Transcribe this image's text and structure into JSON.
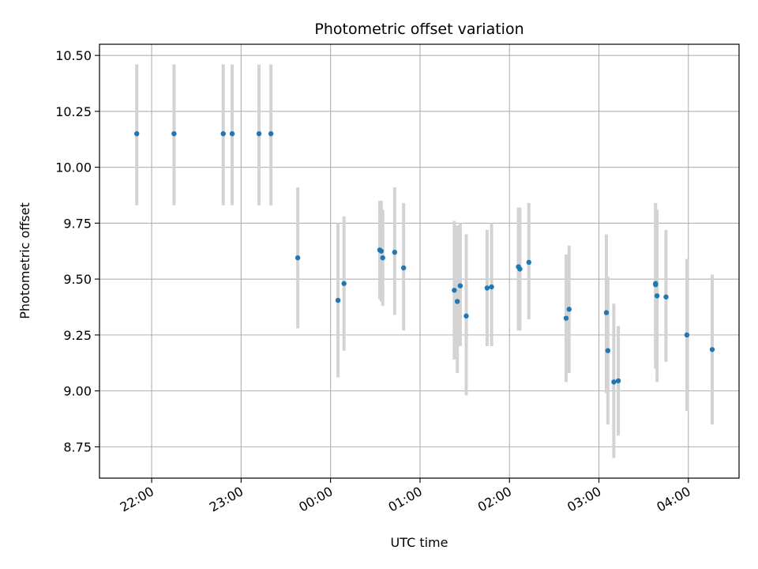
{
  "chart_data": {
    "type": "scatter",
    "title": "Photometric offset variation",
    "xlabel": "UTC time",
    "ylabel": "Photometric offset",
    "x_unit": "UTC time (hh:mm, minutes relative to 00:00; negative = previous day)",
    "xlim": [
      "21:25",
      "04:34"
    ],
    "ylim": [
      8.61,
      10.55
    ],
    "x_ticks": [
      "22:00",
      "23:00",
      "00:00",
      "01:00",
      "02:00",
      "03:00",
      "04:00"
    ],
    "y_ticks": [
      "8.75",
      "9.00",
      "9.25",
      "9.50",
      "9.75",
      "10.00",
      "10.25",
      "10.50"
    ],
    "grid": true,
    "colors": {
      "point": "#1f77b4",
      "errorbar": "#d3d3d3",
      "grid": "#b0b0b0"
    },
    "series": [
      {
        "points": [
          {
            "x": "21:50",
            "y": 10.15,
            "ylow": 9.83,
            "yhigh": 10.46
          },
          {
            "x": "22:15",
            "y": 10.15,
            "ylow": 9.83,
            "yhigh": 10.46
          },
          {
            "x": "22:48",
            "y": 10.15,
            "ylow": 9.83,
            "yhigh": 10.46
          },
          {
            "x": "22:54",
            "y": 10.15,
            "ylow": 9.83,
            "yhigh": 10.46
          },
          {
            "x": "23:12",
            "y": 10.15,
            "ylow": 9.83,
            "yhigh": 10.46
          },
          {
            "x": "23:20",
            "y": 10.15,
            "ylow": 9.83,
            "yhigh": 10.46
          },
          {
            "x": "23:38",
            "y": 9.595,
            "ylow": 9.28,
            "yhigh": 9.91
          },
          {
            "x": "00:05",
            "y": 9.405,
            "ylow": 9.06,
            "yhigh": 9.75
          },
          {
            "x": "00:09",
            "y": 9.48,
            "ylow": 9.18,
            "yhigh": 9.78
          },
          {
            "x": "00:33",
            "y": 9.63,
            "ylow": 9.41,
            "yhigh": 9.85
          },
          {
            "x": "00:34",
            "y": 9.625,
            "ylow": 9.4,
            "yhigh": 9.85
          },
          {
            "x": "00:35",
            "y": 9.595,
            "ylow": 9.38,
            "yhigh": 9.81
          },
          {
            "x": "00:43",
            "y": 9.62,
            "ylow": 9.34,
            "yhigh": 9.91
          },
          {
            "x": "00:49",
            "y": 9.55,
            "ylow": 9.27,
            "yhigh": 9.84
          },
          {
            "x": "01:23",
            "y": 9.45,
            "ylow": 9.14,
            "yhigh": 9.76
          },
          {
            "x": "01:25",
            "y": 9.4,
            "ylow": 9.08,
            "yhigh": 9.74
          },
          {
            "x": "01:27",
            "y": 9.47,
            "ylow": 9.2,
            "yhigh": 9.75
          },
          {
            "x": "01:31",
            "y": 9.335,
            "ylow": 8.98,
            "yhigh": 9.7
          },
          {
            "x": "01:45",
            "y": 9.46,
            "ylow": 9.2,
            "yhigh": 9.72
          },
          {
            "x": "01:48",
            "y": 9.465,
            "ylow": 9.2,
            "yhigh": 9.75
          },
          {
            "x": "02:06",
            "y": 9.555,
            "ylow": 9.27,
            "yhigh": 9.82
          },
          {
            "x": "02:07",
            "y": 9.545,
            "ylow": 9.27,
            "yhigh": 9.82
          },
          {
            "x": "02:13",
            "y": 9.575,
            "ylow": 9.32,
            "yhigh": 9.84
          },
          {
            "x": "02:38",
            "y": 9.325,
            "ylow": 9.04,
            "yhigh": 9.61
          },
          {
            "x": "02:40",
            "y": 9.365,
            "ylow": 9.08,
            "yhigh": 9.65
          },
          {
            "x": "03:05",
            "y": 9.35,
            "ylow": 8.99,
            "yhigh": 9.7
          },
          {
            "x": "03:06",
            "y": 9.18,
            "ylow": 8.85,
            "yhigh": 9.51
          },
          {
            "x": "03:10",
            "y": 9.04,
            "ylow": 8.7,
            "yhigh": 9.39
          },
          {
            "x": "03:13",
            "y": 9.045,
            "ylow": 8.8,
            "yhigh": 9.29
          },
          {
            "x": "03:38",
            "y": 9.475,
            "ylow": 9.1,
            "yhigh": 9.84
          },
          {
            "x": "03:38",
            "y": 9.48,
            "ylow": 9.14,
            "yhigh": 9.82
          },
          {
            "x": "03:39",
            "y": 9.425,
            "ylow": 9.04,
            "yhigh": 9.81
          },
          {
            "x": "03:45",
            "y": 9.42,
            "ylow": 9.13,
            "yhigh": 9.72
          },
          {
            "x": "03:59",
            "y": 9.25,
            "ylow": 8.91,
            "yhigh": 9.59
          },
          {
            "x": "04:16",
            "y": 9.185,
            "ylow": 8.85,
            "yhigh": 9.52
          }
        ]
      }
    ]
  }
}
